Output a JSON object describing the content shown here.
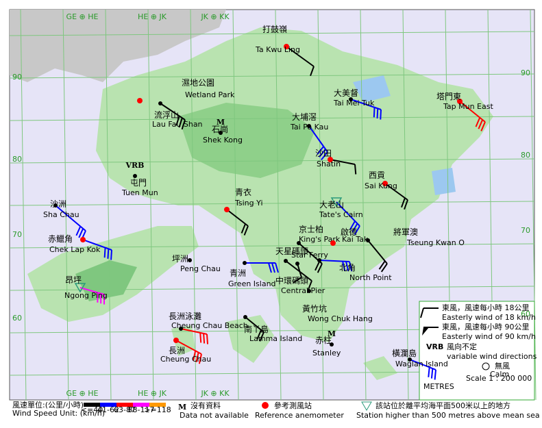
{
  "grid_labels": {
    "top": [
      "GE ⊕ HE",
      "HE ⊕ JK",
      "JK ⊕ KK"
    ],
    "bottom": [
      "GE ⊕ HE",
      "HE ⊕ JK",
      "JK ⊕ KK"
    ],
    "left": [
      "90",
      "80",
      "70",
      "60"
    ],
    "right": [
      "90",
      "80",
      "70",
      "60"
    ]
  },
  "stations": [
    {
      "cn": "打鼓嶺",
      "en": "Ta Kwu Ling",
      "reference": true
    },
    {
      "cn": "濕地公園",
      "en": "Wetland Park",
      "reference": false
    },
    {
      "cn": "流浮山",
      "en": "Lau Fau Shan",
      "reference": true
    },
    {
      "cn": "大美督",
      "en": "Tai Mei Tuk",
      "reference": false
    },
    {
      "cn": "塔門東",
      "en": "Tap Mun East",
      "reference": true
    },
    {
      "cn": "石崗",
      "en": "Shek Kong",
      "reference": false,
      "symbol": "M"
    },
    {
      "cn": "大埔滘",
      "en": "Tai Po Kau",
      "reference": false
    },
    {
      "cn": "沙田",
      "en": "Shatin",
      "reference": true
    },
    {
      "cn": "屯門",
      "en": "Tuen Mun",
      "reference": false,
      "symbol": "VRB"
    },
    {
      "cn": "西貢",
      "en": "Sai Kung",
      "reference": true
    },
    {
      "cn": "青衣",
      "en": "Tsing Yi",
      "reference": true
    },
    {
      "cn": "沙洲",
      "en": "Sha Chau",
      "reference": false
    },
    {
      "cn": "大老山",
      "en": "Tate's Cairn",
      "reference": false,
      "high": true
    },
    {
      "cn": "赤鱲角",
      "en": "Chek Lap Kok",
      "reference": true
    },
    {
      "cn": "京士柏",
      "en": "King's Park",
      "reference": false
    },
    {
      "cn": "啟德",
      "en": "Kai Tak",
      "reference": true
    },
    {
      "cn": "將軍澳",
      "en": "Tseung Kwan O",
      "reference": false
    },
    {
      "cn": "天星碼頭",
      "en": "Star Ferry",
      "reference": false
    },
    {
      "cn": "北角",
      "en": "North Point",
      "reference": false
    },
    {
      "cn": "坪洲",
      "en": "Peng Chau",
      "reference": false
    },
    {
      "cn": "青洲",
      "en": "Green Island",
      "reference": false
    },
    {
      "cn": "中環碼頭",
      "en": "Central Pier",
      "reference": false
    },
    {
      "cn": "昂坪",
      "en": "Ngong Ping",
      "reference": false,
      "high": true
    },
    {
      "cn": "黃竹坑",
      "en": "Wong Chuk Hang",
      "reference": false
    },
    {
      "cn": "長洲泳灘",
      "en": "Cheung Chau Beach",
      "reference": false
    },
    {
      "cn": "南丫島",
      "en": "Lamma Island",
      "reference": false
    },
    {
      "cn": "赤柱",
      "en": "Stanley",
      "reference": false,
      "symbol": "M"
    },
    {
      "cn": "長洲",
      "en": "Cheung Chau",
      "reference": true
    },
    {
      "cn": "橫瀾島",
      "en": "Waglan Island",
      "reference": false
    }
  ],
  "legend": {
    "cn18": "東風，風速每小時 18公里",
    "en18": "Easterly wind of 18 km/h",
    "cn90": "東風，風速每小時 90公里",
    "en90": "Easterly wind of 90 km/h",
    "vrb": "VRB",
    "vrb_cn": "風向不定",
    "vrb_en": "variable wind directions",
    "calm_cn": "無風",
    "calm_en": "Calm",
    "scale": "Scale 1 : 200 000",
    "metres": "METRES"
  },
  "footer": {
    "unit_cn": "風速單位:(公里/小時)",
    "unit_en": "Wind Speed Unit: (km/h)",
    "ranges": [
      {
        "label": "<=40",
        "color": "#000000"
      },
      {
        "label": "41-62",
        "color": "#0000ff"
      },
      {
        "label": "63-87",
        "color": "#ff0000"
      },
      {
        "label": "88-117",
        "color": "#ff00ff"
      },
      {
        "label": ">=118",
        "color": "#ff9900"
      }
    ],
    "m": "M",
    "na_cn": "沒有資料",
    "na_en": "Data not available",
    "ref_cn": "參考測風站",
    "ref_en": "Reference anemometer",
    "high_cn": "該站位於離平均海平面500米以上的地方",
    "high_en": "Station higher than 500 metres above mean sea level"
  }
}
